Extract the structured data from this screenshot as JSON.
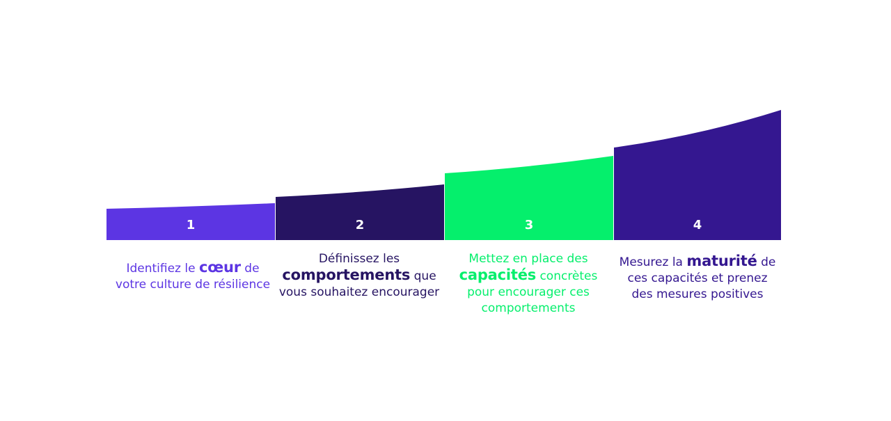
{
  "steps": [
    {
      "number": "1",
      "color": "#5c35e3",
      "before": "Identifiez le ",
      "highlight": "cœur",
      "after": " de votre culture de résilience"
    },
    {
      "number": "2",
      "color": "#261462",
      "before": "Définissez les ",
      "highlight": "comportements",
      "after": " que vous souhaitez encourager"
    },
    {
      "number": "3",
      "color": "#05ef6c",
      "before": "Mettez en place des ",
      "highlight": "capacités",
      "after": " concrètes pour encourager ces comportements"
    },
    {
      "number": "4",
      "color": "#341790",
      "before": "Mesurez la ",
      "highlight": "maturité",
      "after": " de ces capacités et prenez des mesures positives"
    }
  ]
}
